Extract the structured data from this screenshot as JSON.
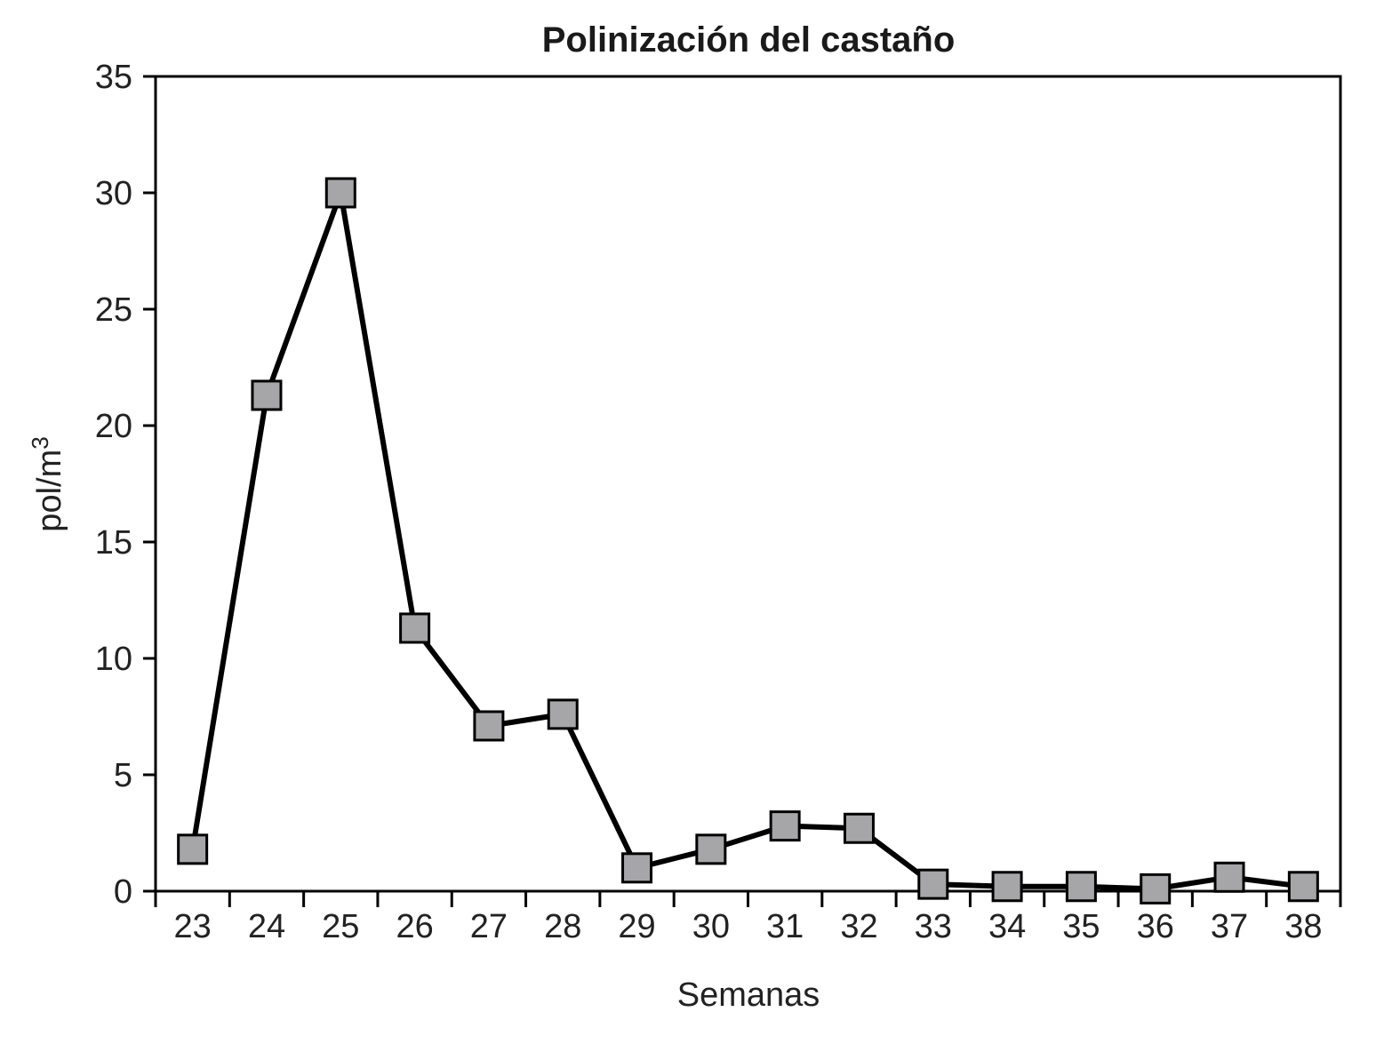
{
  "chart_data": {
    "type": "line",
    "title": "Polinización del castaño",
    "xlabel": "Semanas",
    "ylabel_base": "pol/m",
    "ylabel_sup": "3",
    "x": [
      "23",
      "24",
      "25",
      "26",
      "27",
      "28",
      "29",
      "30",
      "31",
      "32",
      "33",
      "34",
      "35",
      "36",
      "37",
      "38"
    ],
    "values": [
      1.8,
      21.3,
      30.0,
      11.3,
      7.1,
      7.6,
      1.0,
      1.8,
      2.8,
      2.7,
      0.3,
      0.2,
      0.2,
      0.1,
      0.6,
      0.2
    ],
    "ylim": [
      0,
      35
    ],
    "yticks": [
      "0",
      "5",
      "10",
      "15",
      "20",
      "25",
      "30",
      "35"
    ],
    "grid": false,
    "legend": "none",
    "colors": {
      "line": "#000000",
      "marker_fill": "#a6a6a9",
      "marker_stroke": "#000000"
    }
  }
}
